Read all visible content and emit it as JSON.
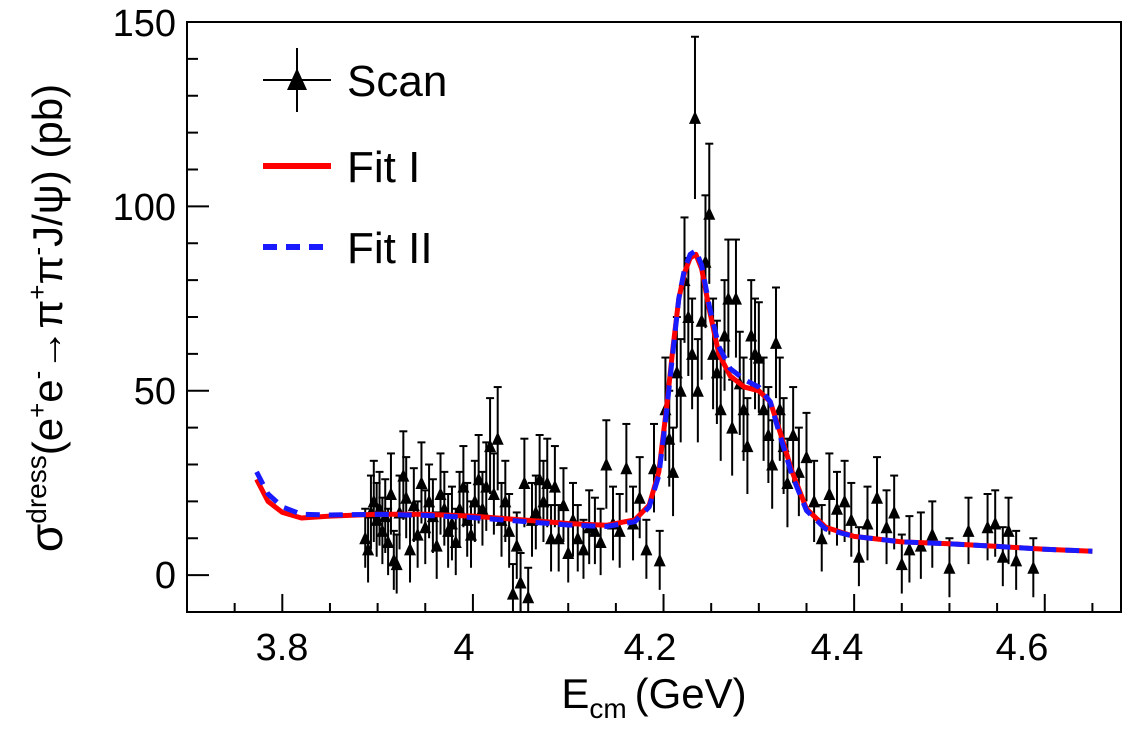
{
  "chart_data": {
    "type": "scatter",
    "title": "",
    "xlabel": {
      "main": "E",
      "sub": "cm",
      "unit": "(GeV)"
    },
    "ylabel": {
      "sigma": "σ",
      "sup": "dress",
      "paren_open": "(e",
      "sup_plus": "+",
      "e2": "e",
      "sup_minus": "-",
      "arrow": "→π",
      "sup_plus2": "+",
      "pi2": "π",
      "sup_minus2": "-",
      "rest": "J/ψ) (pb)"
    },
    "xlim": [
      3.7,
      4.68
    ],
    "ylim": [
      -10,
      150
    ],
    "xticks": [
      3.8,
      4.0,
      4.2,
      4.4,
      4.6
    ],
    "xtick_labels": [
      "3.8",
      "4",
      "4.2",
      "4.4",
      "4.6"
    ],
    "yticks": [
      0,
      50,
      100,
      150
    ],
    "ytick_labels": [
      "0",
      "50",
      "100",
      "150"
    ],
    "legend": {
      "position": "top-left",
      "entries": [
        {
          "label": "Scan",
          "style": "marker-errorbar"
        },
        {
          "label": "Fit I",
          "style": "solid"
        },
        {
          "label": "Fit II",
          "style": "dashed"
        }
      ]
    },
    "colors": {
      "scan": "#000000",
      "fit1": "#ff0000",
      "fit2": "#1a1aff"
    },
    "series": [
      {
        "name": "Scan",
        "type": "errorbar",
        "points": [
          {
            "x": 3.887,
            "y": 10,
            "err": 8
          },
          {
            "x": 3.89,
            "y": 7,
            "err": 9
          },
          {
            "x": 3.893,
            "y": 17,
            "err": 10
          },
          {
            "x": 3.896,
            "y": 20,
            "err": 11
          },
          {
            "x": 3.899,
            "y": 15,
            "err": 10
          },
          {
            "x": 3.902,
            "y": 18,
            "err": 10
          },
          {
            "x": 3.905,
            "y": 12,
            "err": 9
          },
          {
            "x": 3.908,
            "y": 16,
            "err": 10
          },
          {
            "x": 3.911,
            "y": 9,
            "err": 9
          },
          {
            "x": 3.914,
            "y": 22,
            "err": 11
          },
          {
            "x": 3.917,
            "y": 4,
            "err": 8
          },
          {
            "x": 3.92,
            "y": 3,
            "err": 8
          },
          {
            "x": 3.923,
            "y": 17,
            "err": 10
          },
          {
            "x": 3.927,
            "y": 27,
            "err": 12
          },
          {
            "x": 3.93,
            "y": 21,
            "err": 11
          },
          {
            "x": 3.934,
            "y": 7,
            "err": 9
          },
          {
            "x": 3.938,
            "y": 19,
            "err": 10
          },
          {
            "x": 3.942,
            "y": 11,
            "err": 9
          },
          {
            "x": 3.946,
            "y": 25,
            "err": 11
          },
          {
            "x": 3.95,
            "y": 13,
            "err": 10
          },
          {
            "x": 3.954,
            "y": 20,
            "err": 10
          },
          {
            "x": 3.958,
            "y": 16,
            "err": 10
          },
          {
            "x": 3.962,
            "y": 8,
            "err": 9
          },
          {
            "x": 3.966,
            "y": 22,
            "err": 11
          },
          {
            "x": 3.97,
            "y": 18,
            "err": 10
          },
          {
            "x": 3.974,
            "y": 12,
            "err": 10
          },
          {
            "x": 3.978,
            "y": 14,
            "err": 10
          },
          {
            "x": 3.982,
            "y": 9,
            "err": 9
          },
          {
            "x": 3.986,
            "y": 18,
            "err": 10
          },
          {
            "x": 3.99,
            "y": 24,
            "err": 11
          },
          {
            "x": 3.994,
            "y": 15,
            "err": 10
          },
          {
            "x": 3.998,
            "y": 11,
            "err": 9
          },
          {
            "x": 4.002,
            "y": 20,
            "err": 11
          },
          {
            "x": 4.006,
            "y": 26,
            "err": 12
          },
          {
            "x": 4.01,
            "y": 18,
            "err": 10
          },
          {
            "x": 4.014,
            "y": 24,
            "err": 12
          },
          {
            "x": 4.018,
            "y": 35,
            "err": 13
          },
          {
            "x": 4.022,
            "y": 22,
            "err": 11
          },
          {
            "x": 4.026,
            "y": 37,
            "err": 14
          },
          {
            "x": 4.03,
            "y": 15,
            "err": 10
          },
          {
            "x": 4.034,
            "y": 20,
            "err": 11
          },
          {
            "x": 4.038,
            "y": 12,
            "err": 10
          },
          {
            "x": 4.042,
            "y": -5,
            "err": 8
          },
          {
            "x": 4.046,
            "y": 8,
            "err": 9
          },
          {
            "x": 4.05,
            "y": -2,
            "err": 8
          },
          {
            "x": 4.054,
            "y": 25,
            "err": 12
          },
          {
            "x": 4.058,
            "y": -6,
            "err": 8
          },
          {
            "x": 4.062,
            "y": 15,
            "err": 10
          },
          {
            "x": 4.066,
            "y": 17,
            "err": 10
          },
          {
            "x": 4.07,
            "y": 26,
            "err": 12
          },
          {
            "x": 4.074,
            "y": 20,
            "err": 11
          },
          {
            "x": 4.078,
            "y": 25,
            "err": 12
          },
          {
            "x": 4.082,
            "y": 10,
            "err": 9
          },
          {
            "x": 4.086,
            "y": 24,
            "err": 11
          },
          {
            "x": 4.09,
            "y": 10,
            "err": 9
          },
          {
            "x": 4.095,
            "y": 19,
            "err": 10
          },
          {
            "x": 4.1,
            "y": 6,
            "err": 8
          },
          {
            "x": 4.105,
            "y": 15,
            "err": 10
          },
          {
            "x": 4.11,
            "y": 10,
            "err": 9
          },
          {
            "x": 4.116,
            "y": 7,
            "err": 8
          },
          {
            "x": 4.122,
            "y": 13,
            "err": 10
          },
          {
            "x": 4.128,
            "y": 12,
            "err": 9
          },
          {
            "x": 4.134,
            "y": 9,
            "err": 9
          },
          {
            "x": 4.14,
            "y": 30,
            "err": 12
          },
          {
            "x": 4.147,
            "y": 14,
            "err": 10
          },
          {
            "x": 4.154,
            "y": 12,
            "err": 10
          },
          {
            "x": 4.161,
            "y": 29,
            "err": 12
          },
          {
            "x": 4.168,
            "y": 14,
            "err": 10
          },
          {
            "x": 4.175,
            "y": 21,
            "err": 11
          },
          {
            "x": 4.182,
            "y": 7,
            "err": 8
          },
          {
            "x": 4.19,
            "y": 29,
            "err": 12
          },
          {
            "x": 4.196,
            "y": 4,
            "err": 8
          },
          {
            "x": 4.202,
            "y": 45,
            "err": 14
          },
          {
            "x": 4.206,
            "y": 37,
            "err": 13
          },
          {
            "x": 4.21,
            "y": 28,
            "err": 12
          },
          {
            "x": 4.214,
            "y": 55,
            "err": 15
          },
          {
            "x": 4.218,
            "y": 50,
            "err": 14
          },
          {
            "x": 4.222,
            "y": 80,
            "err": 17
          },
          {
            "x": 4.226,
            "y": 70,
            "err": 16
          },
          {
            "x": 4.23,
            "y": 60,
            "err": 15
          },
          {
            "x": 4.233,
            "y": 124,
            "err": 22
          },
          {
            "x": 4.236,
            "y": 50,
            "err": 14
          },
          {
            "x": 4.24,
            "y": 69,
            "err": 16
          },
          {
            "x": 4.244,
            "y": 85,
            "err": 18
          },
          {
            "x": 4.248,
            "y": 98,
            "err": 19
          },
          {
            "x": 4.252,
            "y": 60,
            "err": 15
          },
          {
            "x": 4.256,
            "y": 55,
            "err": 14
          },
          {
            "x": 4.26,
            "y": 45,
            "err": 14
          },
          {
            "x": 4.264,
            "y": 65,
            "err": 15
          },
          {
            "x": 4.268,
            "y": 75,
            "err": 16
          },
          {
            "x": 4.272,
            "y": 40,
            "err": 13
          },
          {
            "x": 4.276,
            "y": 75,
            "err": 16
          },
          {
            "x": 4.28,
            "y": 52,
            "err": 14
          },
          {
            "x": 4.284,
            "y": 45,
            "err": 14
          },
          {
            "x": 4.288,
            "y": 35,
            "err": 13
          },
          {
            "x": 4.292,
            "y": 65,
            "err": 15
          },
          {
            "x": 4.296,
            "y": 60,
            "err": 15
          },
          {
            "x": 4.3,
            "y": 59,
            "err": 15
          },
          {
            "x": 4.305,
            "y": 45,
            "err": 14
          },
          {
            "x": 4.31,
            "y": 38,
            "err": 13
          },
          {
            "x": 4.314,
            "y": 30,
            "err": 12
          },
          {
            "x": 4.318,
            "y": 63,
            "err": 15
          },
          {
            "x": 4.322,
            "y": 45,
            "err": 14
          },
          {
            "x": 4.326,
            "y": 35,
            "err": 13
          },
          {
            "x": 4.33,
            "y": 25,
            "err": 12
          },
          {
            "x": 4.336,
            "y": 38,
            "err": 13
          },
          {
            "x": 4.342,
            "y": 28,
            "err": 12
          },
          {
            "x": 4.35,
            "y": 32,
            "err": 12
          },
          {
            "x": 4.358,
            "y": 20,
            "err": 11
          },
          {
            "x": 4.366,
            "y": 10,
            "err": 9
          },
          {
            "x": 4.374,
            "y": 22,
            "err": 11
          },
          {
            "x": 4.382,
            "y": 18,
            "err": 10
          },
          {
            "x": 4.39,
            "y": 20,
            "err": 11
          },
          {
            "x": 4.397,
            "y": 15,
            "err": 10
          },
          {
            "x": 4.405,
            "y": 5,
            "err": 8
          },
          {
            "x": 4.414,
            "y": 14,
            "err": 10
          },
          {
            "x": 4.424,
            "y": 21,
            "err": 11
          },
          {
            "x": 4.434,
            "y": 13,
            "err": 10
          },
          {
            "x": 4.442,
            "y": 17,
            "err": 10
          },
          {
            "x": 4.45,
            "y": 3,
            "err": 8
          },
          {
            "x": 4.458,
            "y": 7,
            "err": 9
          },
          {
            "x": 4.47,
            "y": 8,
            "err": 9
          },
          {
            "x": 4.482,
            "y": 11,
            "err": 9
          },
          {
            "x": 4.5,
            "y": 2,
            "err": 8
          },
          {
            "x": 4.52,
            "y": 12,
            "err": 9
          },
          {
            "x": 4.54,
            "y": 13,
            "err": 9
          },
          {
            "x": 4.548,
            "y": 14,
            "err": 9
          },
          {
            "x": 4.556,
            "y": 5,
            "err": 8
          },
          {
            "x": 4.562,
            "y": 12,
            "err": 9
          },
          {
            "x": 4.57,
            "y": 4,
            "err": 8
          },
          {
            "x": 4.588,
            "y": 2,
            "err": 8
          }
        ]
      },
      {
        "name": "Fit I",
        "type": "line",
        "x": [
          3.773,
          3.785,
          3.8,
          3.82,
          3.85,
          3.9,
          3.95,
          4.0,
          4.05,
          4.1,
          4.14,
          4.17,
          4.185,
          4.195,
          4.203,
          4.21,
          4.216,
          4.222,
          4.228,
          4.234,
          4.24,
          4.248,
          4.258,
          4.27,
          4.285,
          4.3,
          4.312,
          4.322,
          4.335,
          4.35,
          4.37,
          4.4,
          4.45,
          4.5,
          4.55,
          4.6,
          4.65
        ],
        "y": [
          26,
          20,
          17,
          15.5,
          16,
          16.5,
          16.5,
          16,
          15,
          14,
          13.5,
          15,
          19,
          28,
          45,
          62,
          75,
          82,
          86,
          87,
          83,
          72,
          60,
          54,
          51,
          50,
          47,
          39,
          28,
          18,
          13,
          10.5,
          9,
          8.5,
          7.8,
          7,
          6.5
        ]
      },
      {
        "name": "Fit II",
        "type": "line",
        "x": [
          3.773,
          3.785,
          3.8,
          3.82,
          3.85,
          3.9,
          3.95,
          4.0,
          4.05,
          4.1,
          4.14,
          4.17,
          4.185,
          4.195,
          4.203,
          4.21,
          4.216,
          4.222,
          4.228,
          4.234,
          4.24,
          4.248,
          4.258,
          4.27,
          4.285,
          4.3,
          4.312,
          4.322,
          4.335,
          4.35,
          4.37,
          4.4,
          4.45,
          4.5,
          4.55,
          4.6,
          4.65
        ],
        "y": [
          28,
          22,
          18.5,
          16.5,
          16.3,
          16.5,
          16.2,
          15.6,
          14.6,
          13.6,
          13.2,
          14.5,
          18.5,
          27,
          44,
          61,
          75,
          83,
          87,
          88,
          84,
          73,
          62,
          56,
          53,
          51,
          47,
          38,
          27,
          17.5,
          12.5,
          10.5,
          9,
          8.5,
          7.8,
          7,
          6.5
        ]
      }
    ]
  }
}
